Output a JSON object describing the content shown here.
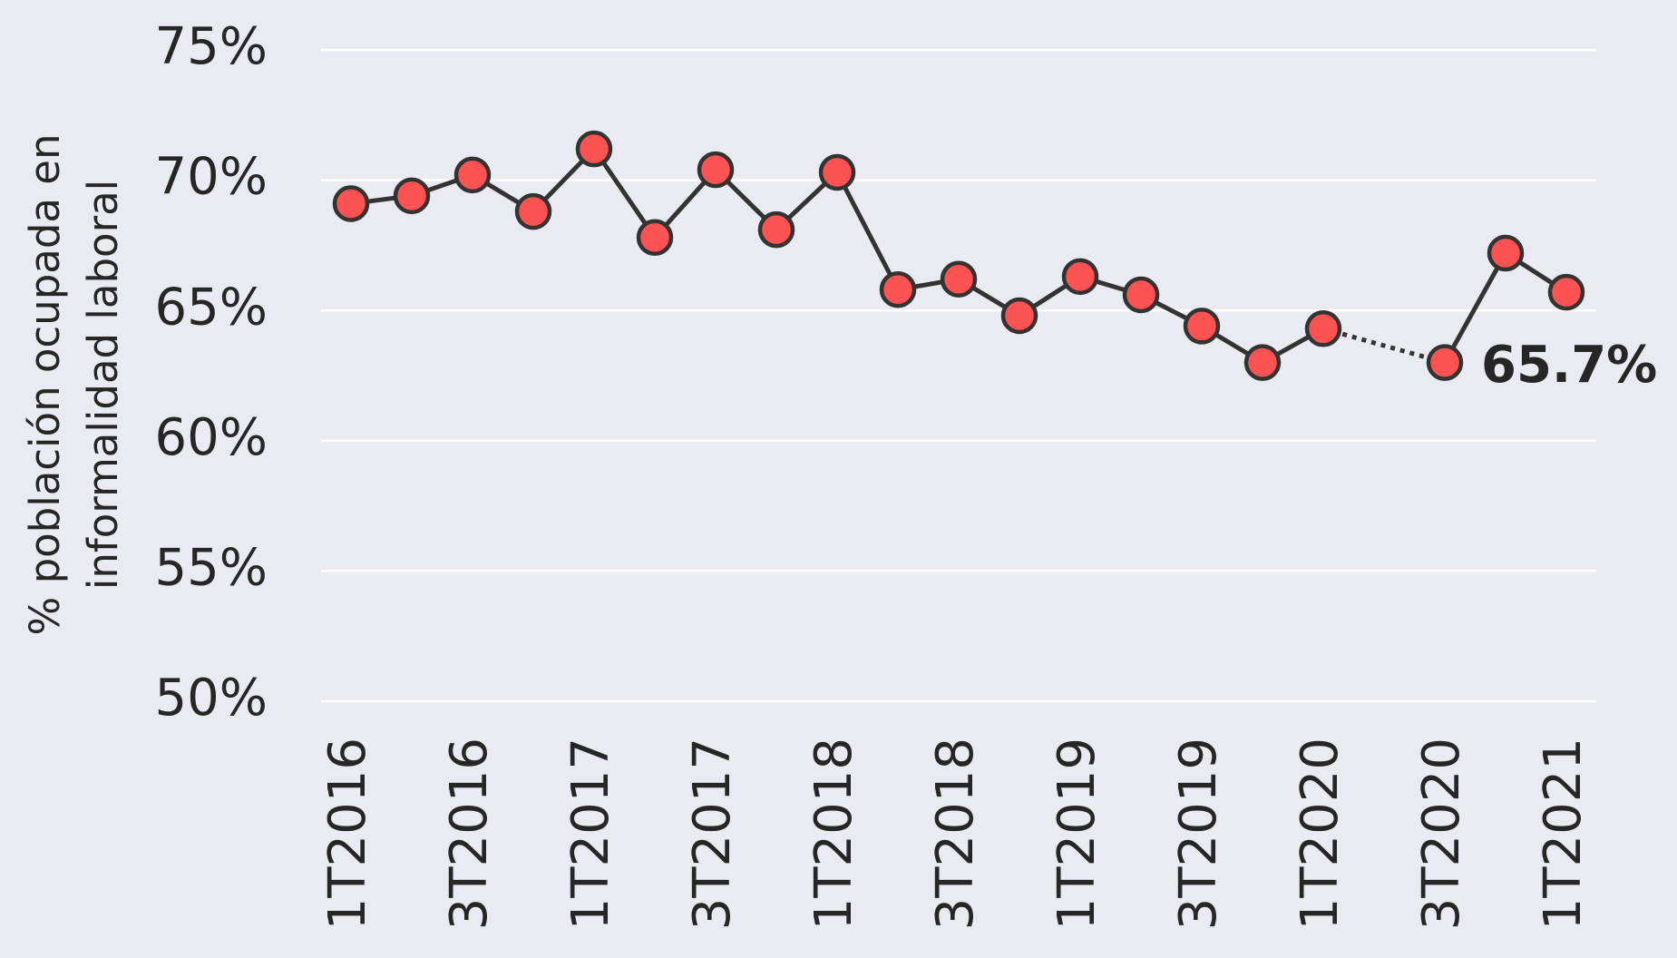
{
  "chart_data": {
    "type": "line",
    "ylabel": [
      "% población ocupada en",
      "informalidad laboral"
    ],
    "categories": [
      "1T2016",
      null,
      "3T2016",
      null,
      "1T2017",
      null,
      "3T2017",
      null,
      "1T2018",
      null,
      "3T2018",
      null,
      "1T2019",
      null,
      "3T2019",
      null,
      "1T2020",
      null,
      "3T2020",
      null,
      "1T2021"
    ],
    "series": [
      {
        "color": "#ff5252",
        "values": [
          69.1,
          69.4,
          70.2,
          68.8,
          71.2,
          67.8,
          70.4,
          68.1,
          70.3,
          65.8,
          66.2,
          64.8,
          66.3,
          65.6,
          64.4,
          63.0,
          64.3,
          null,
          63.0,
          67.2,
          65.7
        ],
        "value_labels": [
          null,
          null,
          null,
          null,
          null,
          null,
          null,
          null,
          null,
          null,
          null,
          null,
          null,
          null,
          null,
          null,
          null,
          null,
          null,
          null,
          "65.7%"
        ]
      }
    ],
    "line_color": "#333333",
    "gap_style": "dotted",
    "ylim": [
      50,
      75
    ],
    "yticks": [
      {
        "value": 50,
        "label": "50%"
      },
      {
        "value": 55,
        "label": "55%"
      },
      {
        "value": 60,
        "label": "60%"
      },
      {
        "value": 65,
        "label": "65%"
      },
      {
        "value": 70,
        "label": "70%"
      },
      {
        "value": 75,
        "label": "75%"
      }
    ],
    "grid": true
  }
}
